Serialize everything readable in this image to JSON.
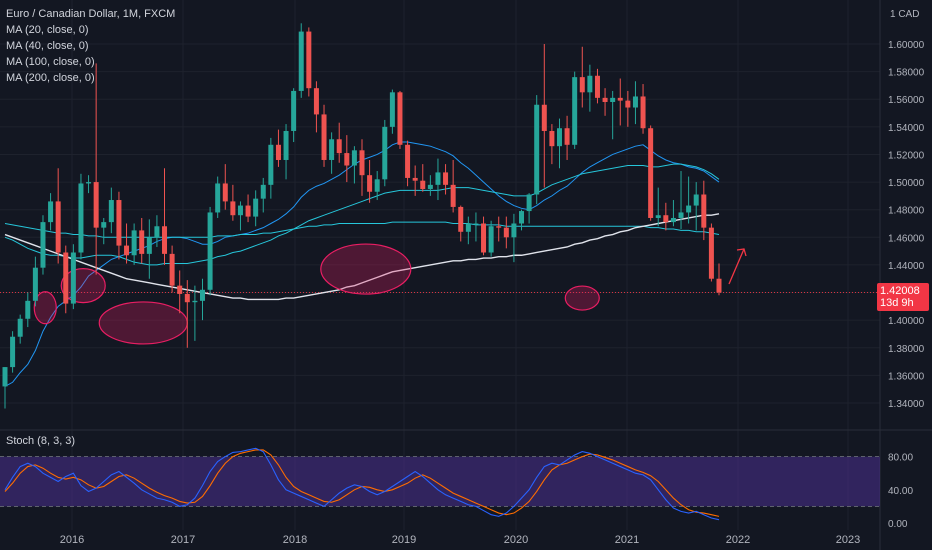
{
  "legend": {
    "title": "Euro / Canadian Dollar, 1M, FXCM",
    "mas": [
      "MA (20, close, 0)",
      "MA (40, close, 0)",
      "MA (100, close, 0)",
      "MA (200, close, 0)"
    ]
  },
  "stoch_label": "Stoch (8, 3, 3)",
  "currency": "CAD",
  "last_price": "1.42008",
  "countdown": "13d 9h",
  "colors": {
    "background": "#131722",
    "up": "#26a69a",
    "down": "#ef5350",
    "ma_blue": "#2196f3",
    "ma_teal": "#26c6da",
    "ma_white": "#e0e3eb",
    "stoch_k": "#2962ff",
    "stoch_d": "#ff6d00",
    "stoch_band": "#4a2f8f",
    "highlight": "#e91e63"
  },
  "chart_data": {
    "type": "candlestick",
    "title": "Euro / Canadian Dollar, 1M, FXCM",
    "y_axis": {
      "ticks": [
        "1.60000",
        "1.58000",
        "1.56000",
        "1.54000",
        "1.52000",
        "1.50000",
        "1.48000",
        "1.46000",
        "1.44000",
        "1.42000",
        "1.40000",
        "1.38000",
        "1.36000",
        "1.34000"
      ],
      "range": [
        1.33,
        1.625
      ]
    },
    "x_axis": {
      "ticks": [
        "2016",
        "2017",
        "2018",
        "2019",
        "2020",
        "2021",
        "2022",
        "2023"
      ]
    },
    "candles": [
      {
        "o": 1.352,
        "h": 1.366,
        "l": 1.336,
        "c": 1.366
      },
      {
        "o": 1.366,
        "h": 1.392,
        "l": 1.362,
        "c": 1.388
      },
      {
        "o": 1.388,
        "h": 1.404,
        "l": 1.383,
        "c": 1.401
      },
      {
        "o": 1.401,
        "h": 1.42,
        "l": 1.395,
        "c": 1.414
      },
      {
        "o": 1.414,
        "h": 1.446,
        "l": 1.41,
        "c": 1.438
      },
      {
        "o": 1.438,
        "h": 1.476,
        "l": 1.433,
        "c": 1.471
      },
      {
        "o": 1.471,
        "h": 1.492,
        "l": 1.465,
        "c": 1.486
      },
      {
        "o": 1.486,
        "h": 1.51,
        "l": 1.441,
        "c": 1.449
      },
      {
        "o": 1.449,
        "h": 1.454,
        "l": 1.405,
        "c": 1.412
      },
      {
        "o": 1.412,
        "h": 1.455,
        "l": 1.408,
        "c": 1.449
      },
      {
        "o": 1.449,
        "h": 1.506,
        "l": 1.444,
        "c": 1.499
      },
      {
        "o": 1.499,
        "h": 1.505,
        "l": 1.492,
        "c": 1.5
      },
      {
        "o": 1.5,
        "h": 1.586,
        "l": 1.433,
        "c": 1.467
      },
      {
        "o": 1.467,
        "h": 1.474,
        "l": 1.455,
        "c": 1.471
      },
      {
        "o": 1.471,
        "h": 1.496,
        "l": 1.463,
        "c": 1.487
      },
      {
        "o": 1.487,
        "h": 1.493,
        "l": 1.444,
        "c": 1.454
      },
      {
        "o": 1.454,
        "h": 1.47,
        "l": 1.441,
        "c": 1.447
      },
      {
        "o": 1.447,
        "h": 1.47,
        "l": 1.44,
        "c": 1.465
      },
      {
        "o": 1.465,
        "h": 1.474,
        "l": 1.441,
        "c": 1.448
      },
      {
        "o": 1.448,
        "h": 1.473,
        "l": 1.43,
        "c": 1.46
      },
      {
        "o": 1.46,
        "h": 1.476,
        "l": 1.453,
        "c": 1.468
      },
      {
        "o": 1.468,
        "h": 1.51,
        "l": 1.44,
        "c": 1.448
      },
      {
        "o": 1.448,
        "h": 1.454,
        "l": 1.42,
        "c": 1.425
      },
      {
        "o": 1.425,
        "h": 1.436,
        "l": 1.405,
        "c": 1.419
      },
      {
        "o": 1.419,
        "h": 1.429,
        "l": 1.38,
        "c": 1.413
      },
      {
        "o": 1.413,
        "h": 1.425,
        "l": 1.385,
        "c": 1.414
      },
      {
        "o": 1.414,
        "h": 1.43,
        "l": 1.4,
        "c": 1.422
      },
      {
        "o": 1.422,
        "h": 1.482,
        "l": 1.418,
        "c": 1.478
      },
      {
        "o": 1.478,
        "h": 1.504,
        "l": 1.474,
        "c": 1.499
      },
      {
        "o": 1.499,
        "h": 1.513,
        "l": 1.48,
        "c": 1.486
      },
      {
        "o": 1.486,
        "h": 1.498,
        "l": 1.472,
        "c": 1.476
      },
      {
        "o": 1.476,
        "h": 1.486,
        "l": 1.465,
        "c": 1.483
      },
      {
        "o": 1.483,
        "h": 1.491,
        "l": 1.471,
        "c": 1.475
      },
      {
        "o": 1.475,
        "h": 1.494,
        "l": 1.468,
        "c": 1.488
      },
      {
        "o": 1.488,
        "h": 1.503,
        "l": 1.478,
        "c": 1.498
      },
      {
        "o": 1.498,
        "h": 1.532,
        "l": 1.488,
        "c": 1.527
      },
      {
        "o": 1.527,
        "h": 1.538,
        "l": 1.511,
        "c": 1.516
      },
      {
        "o": 1.516,
        "h": 1.542,
        "l": 1.502,
        "c": 1.537
      },
      {
        "o": 1.537,
        "h": 1.568,
        "l": 1.529,
        "c": 1.566
      },
      {
        "o": 1.566,
        "h": 1.615,
        "l": 1.561,
        "c": 1.609
      },
      {
        "o": 1.609,
        "h": 1.612,
        "l": 1.562,
        "c": 1.568
      },
      {
        "o": 1.568,
        "h": 1.573,
        "l": 1.536,
        "c": 1.549
      },
      {
        "o": 1.549,
        "h": 1.556,
        "l": 1.511,
        "c": 1.516
      },
      {
        "o": 1.516,
        "h": 1.536,
        "l": 1.506,
        "c": 1.531
      },
      {
        "o": 1.531,
        "h": 1.543,
        "l": 1.514,
        "c": 1.521
      },
      {
        "o": 1.521,
        "h": 1.534,
        "l": 1.5,
        "c": 1.512
      },
      {
        "o": 1.512,
        "h": 1.526,
        "l": 1.499,
        "c": 1.523
      },
      {
        "o": 1.523,
        "h": 1.531,
        "l": 1.49,
        "c": 1.505
      },
      {
        "o": 1.505,
        "h": 1.516,
        "l": 1.485,
        "c": 1.493
      },
      {
        "o": 1.493,
        "h": 1.508,
        "l": 1.487,
        "c": 1.502
      },
      {
        "o": 1.502,
        "h": 1.545,
        "l": 1.497,
        "c": 1.54
      },
      {
        "o": 1.54,
        "h": 1.567,
        "l": 1.535,
        "c": 1.565
      },
      {
        "o": 1.565,
        "h": 1.566,
        "l": 1.524,
        "c": 1.527
      },
      {
        "o": 1.527,
        "h": 1.53,
        "l": 1.497,
        "c": 1.503
      },
      {
        "o": 1.503,
        "h": 1.512,
        "l": 1.49,
        "c": 1.501
      },
      {
        "o": 1.501,
        "h": 1.513,
        "l": 1.493,
        "c": 1.495
      },
      {
        "o": 1.495,
        "h": 1.505,
        "l": 1.49,
        "c": 1.498
      },
      {
        "o": 1.498,
        "h": 1.517,
        "l": 1.487,
        "c": 1.507
      },
      {
        "o": 1.507,
        "h": 1.513,
        "l": 1.491,
        "c": 1.498
      },
      {
        "o": 1.498,
        "h": 1.516,
        "l": 1.478,
        "c": 1.482
      },
      {
        "o": 1.482,
        "h": 1.483,
        "l": 1.457,
        "c": 1.464
      },
      {
        "o": 1.464,
        "h": 1.475,
        "l": 1.455,
        "c": 1.47
      },
      {
        "o": 1.47,
        "h": 1.478,
        "l": 1.457,
        "c": 1.47
      },
      {
        "o": 1.47,
        "h": 1.475,
        "l": 1.447,
        "c": 1.449
      },
      {
        "o": 1.449,
        "h": 1.472,
        "l": 1.446,
        "c": 1.468
      },
      {
        "o": 1.468,
        "h": 1.475,
        "l": 1.457,
        "c": 1.467
      },
      {
        "o": 1.467,
        "h": 1.475,
        "l": 1.452,
        "c": 1.46
      },
      {
        "o": 1.46,
        "h": 1.477,
        "l": 1.442,
        "c": 1.47
      },
      {
        "o": 1.47,
        "h": 1.48,
        "l": 1.465,
        "c": 1.479
      },
      {
        "o": 1.479,
        "h": 1.492,
        "l": 1.47,
        "c": 1.491
      },
      {
        "o": 1.491,
        "h": 1.563,
        "l": 1.484,
        "c": 1.556
      },
      {
        "o": 1.556,
        "h": 1.6,
        "l": 1.496,
        "c": 1.537
      },
      {
        "o": 1.537,
        "h": 1.542,
        "l": 1.513,
        "c": 1.526
      },
      {
        "o": 1.526,
        "h": 1.546,
        "l": 1.51,
        "c": 1.539
      },
      {
        "o": 1.539,
        "h": 1.548,
        "l": 1.516,
        "c": 1.527
      },
      {
        "o": 1.527,
        "h": 1.58,
        "l": 1.524,
        "c": 1.576
      },
      {
        "o": 1.576,
        "h": 1.598,
        "l": 1.554,
        "c": 1.565
      },
      {
        "o": 1.565,
        "h": 1.585,
        "l": 1.551,
        "c": 1.577
      },
      {
        "o": 1.577,
        "h": 1.582,
        "l": 1.557,
        "c": 1.561
      },
      {
        "o": 1.561,
        "h": 1.568,
        "l": 1.548,
        "c": 1.558
      },
      {
        "o": 1.558,
        "h": 1.566,
        "l": 1.531,
        "c": 1.561
      },
      {
        "o": 1.561,
        "h": 1.575,
        "l": 1.541,
        "c": 1.559
      },
      {
        "o": 1.559,
        "h": 1.566,
        "l": 1.54,
        "c": 1.554
      },
      {
        "o": 1.554,
        "h": 1.573,
        "l": 1.542,
        "c": 1.562
      },
      {
        "o": 1.562,
        "h": 1.571,
        "l": 1.535,
        "c": 1.539
      },
      {
        "o": 1.539,
        "h": 1.541,
        "l": 1.472,
        "c": 1.474
      },
      {
        "o": 1.474,
        "h": 1.496,
        "l": 1.468,
        "c": 1.476
      },
      {
        "o": 1.476,
        "h": 1.485,
        "l": 1.465,
        "c": 1.471
      },
      {
        "o": 1.471,
        "h": 1.487,
        "l": 1.468,
        "c": 1.474
      },
      {
        "o": 1.474,
        "h": 1.508,
        "l": 1.466,
        "c": 1.478
      },
      {
        "o": 1.478,
        "h": 1.504,
        "l": 1.47,
        "c": 1.483
      },
      {
        "o": 1.483,
        "h": 1.5,
        "l": 1.465,
        "c": 1.491
      },
      {
        "o": 1.491,
        "h": 1.501,
        "l": 1.458,
        "c": 1.467
      },
      {
        "o": 1.467,
        "h": 1.47,
        "l": 1.428,
        "c": 1.43
      },
      {
        "o": 1.43,
        "h": 1.441,
        "l": 1.418,
        "c": 1.42
      }
    ],
    "moving_averages": [
      {
        "name": "MA (20, close, 0)",
        "values": [
          1.352,
          1.355,
          1.362,
          1.368,
          1.378,
          1.392,
          1.402,
          1.41,
          1.414,
          1.418,
          1.424,
          1.432,
          1.436,
          1.44,
          1.444,
          1.446,
          1.448,
          1.45,
          1.452,
          1.454,
          1.457,
          1.459,
          1.46,
          1.46,
          1.459,
          1.457,
          1.455,
          1.455,
          1.457,
          1.46,
          1.461,
          1.462,
          1.463,
          1.465,
          1.467,
          1.47,
          1.473,
          1.477,
          1.482,
          1.489,
          1.494,
          1.497,
          1.499,
          1.502,
          1.505,
          1.509,
          1.513,
          1.516,
          1.518,
          1.52,
          1.523,
          1.527,
          1.529,
          1.529,
          1.528,
          1.527,
          1.526,
          1.524,
          1.522,
          1.519,
          1.514,
          1.51,
          1.505,
          1.5,
          1.495,
          1.49,
          1.486,
          1.483,
          1.481,
          1.48,
          1.483,
          1.487,
          1.49,
          1.494,
          1.497,
          1.502,
          1.507,
          1.511,
          1.514,
          1.517,
          1.52,
          1.522,
          1.524,
          1.526,
          1.527,
          1.523,
          1.519,
          1.516,
          1.514,
          1.513,
          1.511,
          1.51,
          1.508,
          1.504,
          1.5
        ]
      },
      {
        "name": "MA (40, close, 0)",
        "values": [
          1.46,
          1.458,
          1.455,
          1.452,
          1.45,
          1.448,
          1.447,
          1.447,
          1.446,
          1.445,
          1.445,
          1.446,
          1.447,
          1.447,
          1.447,
          1.446,
          1.444,
          1.442,
          1.441,
          1.44,
          1.44,
          1.441,
          1.441,
          1.441,
          1.441,
          1.442,
          1.443,
          1.444,
          1.446,
          1.447,
          1.449,
          1.45,
          1.452,
          1.454,
          1.456,
          1.458,
          1.461,
          1.463,
          1.466,
          1.469,
          1.472,
          1.474,
          1.476,
          1.478,
          1.48,
          1.482,
          1.484,
          1.486,
          1.488,
          1.49,
          1.492,
          1.493,
          1.494,
          1.494,
          1.494,
          1.494,
          1.494,
          1.494,
          1.495,
          1.496,
          1.496,
          1.496,
          1.495,
          1.494,
          1.493,
          1.492,
          1.491,
          1.49,
          1.49,
          1.49,
          1.492,
          1.495,
          1.498,
          1.5,
          1.502,
          1.504,
          1.506,
          1.507,
          1.508,
          1.509,
          1.51,
          1.511,
          1.512,
          1.512,
          1.512,
          1.511,
          1.511,
          1.512,
          1.513,
          1.513,
          1.512,
          1.511,
          1.509,
          1.506,
          1.502
        ]
      },
      {
        "name": "MA (100, close, 0)",
        "values": [
          1.47,
          1.469,
          1.468,
          1.467,
          1.466,
          1.465,
          1.464,
          1.463,
          1.463,
          1.462,
          1.462,
          1.461,
          1.461,
          1.46,
          1.46,
          1.46,
          1.46,
          1.46,
          1.46,
          1.46,
          1.46,
          1.46,
          1.46,
          1.46,
          1.46,
          1.46,
          1.46,
          1.46,
          1.461,
          1.461,
          1.461,
          1.462,
          1.462,
          1.462,
          1.463,
          1.463,
          1.464,
          1.465,
          1.466,
          1.467,
          1.468,
          1.468,
          1.469,
          1.469,
          1.47,
          1.47,
          1.47,
          1.47,
          1.47,
          1.47,
          1.47,
          1.471,
          1.471,
          1.471,
          1.471,
          1.471,
          1.471,
          1.471,
          1.471,
          1.47,
          1.47,
          1.47,
          1.469,
          1.469,
          1.469,
          1.469,
          1.468,
          1.468,
          1.468,
          1.468,
          1.468,
          1.468,
          1.468,
          1.468,
          1.468,
          1.468,
          1.468,
          1.468,
          1.468,
          1.468,
          1.468,
          1.468,
          1.468,
          1.468,
          1.468,
          1.467,
          1.467,
          1.466,
          1.466,
          1.465,
          1.465,
          1.464,
          1.464,
          1.463,
          1.462
        ]
      },
      {
        "name": "MA (200, close, 0)",
        "values": [
          1.462,
          1.46,
          1.458,
          1.456,
          1.454,
          1.452,
          1.45,
          1.448,
          1.446,
          1.444,
          1.442,
          1.44,
          1.438,
          1.436,
          1.434,
          1.432,
          1.43,
          1.429,
          1.428,
          1.427,
          1.426,
          1.425,
          1.424,
          1.423,
          1.422,
          1.421,
          1.42,
          1.419,
          1.418,
          1.417,
          1.416,
          1.416,
          1.415,
          1.415,
          1.415,
          1.415,
          1.415,
          1.416,
          1.416,
          1.417,
          1.418,
          1.419,
          1.42,
          1.421,
          1.422,
          1.424,
          1.425,
          1.427,
          1.429,
          1.431,
          1.433,
          1.435,
          1.436,
          1.437,
          1.438,
          1.439,
          1.44,
          1.441,
          1.442,
          1.443,
          1.443,
          1.444,
          1.444,
          1.445,
          1.445,
          1.446,
          1.446,
          1.447,
          1.447,
          1.448,
          1.449,
          1.45,
          1.451,
          1.452,
          1.453,
          1.455,
          1.456,
          1.458,
          1.459,
          1.461,
          1.462,
          1.464,
          1.465,
          1.467,
          1.468,
          1.469,
          1.47,
          1.471,
          1.472,
          1.473,
          1.474,
          1.475,
          1.476,
          1.476,
          1.477
        ]
      }
    ],
    "stochastic": {
      "name": "Stoch (8, 3, 3)",
      "y_ticks": [
        "80.00",
        "40.00",
        "0.00"
      ],
      "bands": [
        20,
        80
      ],
      "k": [
        40,
        55,
        68,
        72,
        68,
        60,
        55,
        50,
        56,
        60,
        45,
        38,
        42,
        50,
        58,
        62,
        55,
        48,
        40,
        35,
        30,
        28,
        25,
        20,
        22,
        30,
        45,
        62,
        74,
        80,
        85,
        86,
        88,
        90,
        86,
        70,
        52,
        40,
        36,
        32,
        28,
        24,
        20,
        28,
        36,
        42,
        46,
        44,
        38,
        34,
        38,
        44,
        50,
        56,
        62,
        56,
        48,
        40,
        34,
        30,
        26,
        22,
        20,
        15,
        10,
        8,
        12,
        20,
        30,
        40,
        55,
        68,
        72,
        70,
        76,
        82,
        86,
        84,
        80,
        76,
        72,
        68,
        64,
        60,
        58,
        52,
        40,
        28,
        18,
        14,
        12,
        14,
        10,
        6,
        4
      ],
      "d": [
        38,
        48,
        60,
        68,
        70,
        66,
        60,
        55,
        53,
        55,
        52,
        46,
        42,
        44,
        50,
        56,
        58,
        54,
        48,
        42,
        37,
        33,
        30,
        26,
        24,
        25,
        32,
        45,
        60,
        72,
        80,
        84,
        86,
        88,
        88,
        82,
        70,
        55,
        44,
        38,
        34,
        30,
        26,
        25,
        28,
        34,
        40,
        44,
        43,
        40,
        38,
        40,
        44,
        48,
        54,
        58,
        54,
        48,
        42,
        36,
        32,
        28,
        24,
        20,
        16,
        12,
        10,
        12,
        18,
        26,
        38,
        52,
        64,
        70,
        72,
        76,
        80,
        83,
        82,
        79,
        76,
        72,
        68,
        64,
        61,
        57,
        50,
        40,
        30,
        22,
        16,
        13,
        12,
        10,
        8
      ]
    }
  }
}
